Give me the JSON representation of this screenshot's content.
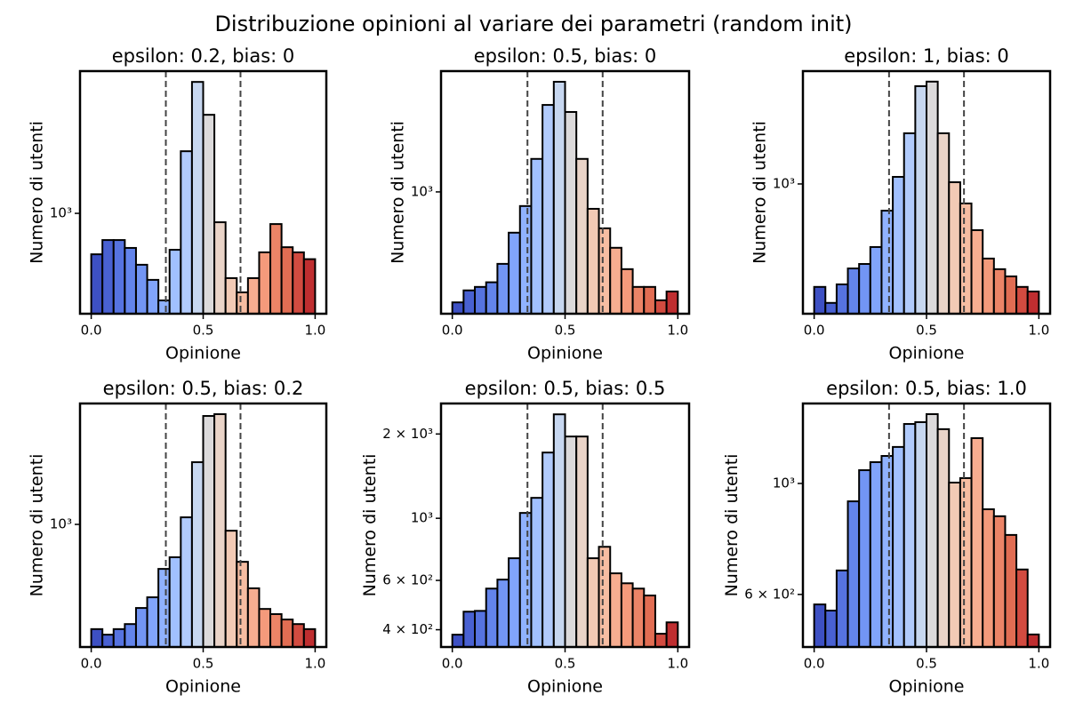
{
  "title": "Distribuzione opinioni al variare dei parametri (random init)",
  "chart_data": [
    {
      "type": "histogram",
      "title": "epsilon: 0.2, bias: 0",
      "xlabel": "Opinione",
      "ylabel": "Numero di utenti",
      "yscale": "log",
      "bins": [
        0,
        0.05,
        0.1,
        0.15,
        0.2,
        0.25,
        0.3,
        0.35,
        0.4,
        0.45,
        0.5,
        0.55,
        0.6,
        0.65,
        0.7,
        0.75,
        0.8,
        0.85,
        0.9,
        0.95,
        1
      ],
      "values": [
        671,
        771,
        771,
        714,
        606,
        523,
        428,
        701,
        1832,
        3600,
        2613,
        917,
        532,
        463,
        532,
        684,
        901,
        719,
        684,
        640
      ],
      "colors": [
        "#3d50c3",
        "#4961d2",
        "#5673e0",
        "#6384eb",
        "#7295f4",
        "#81a4fb",
        "#90b2fe",
        "#a1c0ff",
        "#b1cbfc",
        "#c7d7f0",
        "#dcdadb",
        "#ead4c8",
        "#f2cab5",
        "#f6bda2",
        "#f7ad90",
        "#f49a7b",
        "#ec8467",
        "#e16d53",
        "#d24b40",
        "#bf2e30"
      ],
      "xlim": [
        -0.05,
        1.05
      ],
      "ylim": [
        376,
        4000
      ],
      "xticks": [
        {
          "value": 0,
          "label": "0.0"
        },
        0.5,
        {
          "value": 1,
          "label": "1.0"
        }
      ],
      "yticks": [
        {
          "value": 1000,
          "label": "10³"
        }
      ],
      "vlines": [
        0.3333,
        0.6667
      ]
    },
    {
      "type": "histogram",
      "title": "epsilon: 0.5, bias: 0",
      "xlabel": "Opinione",
      "ylabel": "Numero di utenti",
      "yscale": "log",
      "bins": [
        0,
        0.05,
        0.1,
        0.15,
        0.2,
        0.25,
        0.3,
        0.35,
        0.4,
        0.45,
        0.5,
        0.55,
        0.6,
        0.65,
        0.7,
        0.75,
        0.8,
        0.85,
        0.9,
        0.95,
        1
      ],
      "values": [
        385,
        427,
        440,
        458,
        537,
        703,
        885,
        1330,
        2120,
        2590,
        1995,
        1330,
        864,
        730,
        617,
        513,
        440,
        440,
        392,
        423
      ],
      "colors": [
        "#3d50c3",
        "#4961d2",
        "#5673e0",
        "#6384eb",
        "#7295f4",
        "#81a4fb",
        "#90b2fe",
        "#a1c0ff",
        "#b1cbfc",
        "#c7d7f0",
        "#dcdadb",
        "#ead4c8",
        "#f2cab5",
        "#f6bda2",
        "#f7ad90",
        "#f49a7b",
        "#ec8467",
        "#e16d53",
        "#d24b40",
        "#bf2e30"
      ],
      "xlim": [
        -0.05,
        1.05
      ],
      "ylim": [
        349,
        2840
      ],
      "xticks": [
        {
          "value": 0,
          "label": "0.0"
        },
        0.5,
        {
          "value": 1,
          "label": "1.0"
        }
      ],
      "yticks": [
        {
          "value": 1000,
          "label": "10³"
        }
      ],
      "vlines": [
        0.3333,
        0.6667
      ]
    },
    {
      "type": "histogram",
      "title": "epsilon: 1, bias: 0",
      "xlabel": "Opinione",
      "ylabel": "Numero di utenti",
      "yscale": "log",
      "bins": [
        0,
        0.05,
        0.1,
        0.15,
        0.2,
        0.25,
        0.3,
        0.35,
        0.4,
        0.45,
        0.5,
        0.55,
        0.6,
        0.65,
        0.7,
        0.75,
        0.8,
        0.85,
        0.9,
        0.95,
        1
      ],
      "values": [
        411,
        358,
        420,
        482,
        501,
        580,
        794,
        1063,
        1549,
        2327,
        2420,
        1549,
        1015,
        845,
        671,
        525,
        479,
        450,
        411,
        395
      ],
      "colors": [
        "#3d50c3",
        "#4961d2",
        "#5673e0",
        "#6384eb",
        "#7295f4",
        "#81a4fb",
        "#90b2fe",
        "#a1c0ff",
        "#b1cbfc",
        "#c7d7f0",
        "#dcdadb",
        "#ead4c8",
        "#f2cab5",
        "#f6bda2",
        "#f7ad90",
        "#f49a7b",
        "#ec8467",
        "#e16d53",
        "#d24b40",
        "#bf2e30"
      ],
      "xlim": [
        -0.05,
        1.05
      ],
      "ylim": [
        326,
        2650
      ],
      "xticks": [
        {
          "value": 0,
          "label": "0.0"
        },
        0.5,
        {
          "value": 1,
          "label": "1.0"
        }
      ],
      "yticks": [
        {
          "value": 1000,
          "label": "10³"
        }
      ],
      "vlines": [
        0.3333,
        0.6667
      ]
    },
    {
      "type": "histogram",
      "title": "epsilon: 0.5, bias: 0.2",
      "xlabel": "Opinione",
      "ylabel": "Numero di utenti",
      "yscale": "log",
      "bins": [
        0,
        0.05,
        0.1,
        0.15,
        0.2,
        0.25,
        0.3,
        0.35,
        0.4,
        0.45,
        0.5,
        0.55,
        0.6,
        0.65,
        0.7,
        0.75,
        0.8,
        0.85,
        0.9,
        0.95,
        1
      ],
      "values": [
        405,
        386,
        405,
        423,
        486,
        533,
        681,
        753,
        1063,
        1711,
        2550,
        2590,
        947,
        724,
        576,
        482,
        461,
        440,
        423,
        405
      ],
      "colors": [
        "#3d50c3",
        "#4961d2",
        "#5673e0",
        "#6384eb",
        "#7295f4",
        "#81a4fb",
        "#90b2fe",
        "#a1c0ff",
        "#b1cbfc",
        "#c7d7f0",
        "#dcdadb",
        "#ead4c8",
        "#f2cab5",
        "#f6bda2",
        "#f7ad90",
        "#f49a7b",
        "#ec8467",
        "#e16d53",
        "#d24b40",
        "#bf2e30"
      ],
      "xlim": [
        -0.05,
        1.05
      ],
      "ylim": [
        347,
        2840
      ],
      "xticks": [
        {
          "value": 0,
          "label": "0.0"
        },
        0.5,
        {
          "value": 1,
          "label": "1.0"
        }
      ],
      "yticks": [
        {
          "value": 1000,
          "label": "10³"
        }
      ],
      "vlines": [
        0.3333,
        0.6667
      ]
    },
    {
      "type": "histogram",
      "title": "epsilon: 0.5, bias: 0.5",
      "xlabel": "Opinione",
      "ylabel": "Numero di utenti",
      "yscale": "log",
      "bins": [
        0,
        0.05,
        0.1,
        0.15,
        0.2,
        0.25,
        0.3,
        0.35,
        0.4,
        0.45,
        0.5,
        0.55,
        0.6,
        0.65,
        0.7,
        0.75,
        0.8,
        0.85,
        0.9,
        0.95,
        1
      ],
      "values": [
        384,
        464,
        467,
        561,
        604,
        720,
        1045,
        1183,
        1717,
        2351,
        1959,
        1959,
        720,
        791,
        636,
        586,
        561,
        530,
        387,
        425
      ],
      "colors": [
        "#3d50c3",
        "#4961d2",
        "#5673e0",
        "#6384eb",
        "#7295f4",
        "#81a4fb",
        "#90b2fe",
        "#a1c0ff",
        "#b1cbfc",
        "#c7d7f0",
        "#dcdadb",
        "#ead4c8",
        "#f2cab5",
        "#f6bda2",
        "#f7ad90",
        "#f49a7b",
        "#ec8467",
        "#e16d53",
        "#d24b40",
        "#bf2e30"
      ],
      "xlim": [
        -0.05,
        1.05
      ],
      "ylim": [
        347,
        2570
      ],
      "xticks": [
        {
          "value": 0,
          "label": "0.0"
        },
        0.5,
        {
          "value": 1,
          "label": "1.0"
        }
      ],
      "yticks": [
        {
          "value": 400,
          "label": "4 × 10²"
        },
        {
          "value": 600,
          "label": "6 × 10²"
        },
        {
          "value": 1000,
          "label": "10³"
        },
        {
          "value": 2000,
          "label": "2 × 10³"
        }
      ],
      "vlines": [
        0.3333,
        0.6667
      ]
    },
    {
      "type": "histogram",
      "title": "epsilon: 0.5, bias: 1.0",
      "xlabel": "Opinione",
      "ylabel": "Numero di utenti",
      "yscale": "log",
      "bins": [
        0,
        0.05,
        0.1,
        0.15,
        0.2,
        0.25,
        0.3,
        0.35,
        0.4,
        0.45,
        0.5,
        0.55,
        0.6,
        0.65,
        0.7,
        0.75,
        0.8,
        0.85,
        0.9,
        0.95,
        1
      ],
      "values": [
        573,
        557,
        670,
        921,
        1063,
        1103,
        1135,
        1183,
        1315,
        1326,
        1376,
        1284,
        1004,
        1025,
        1232,
        888,
        860,
        789,
        673,
        499
      ],
      "colors": [
        "#3d50c3",
        "#4961d2",
        "#5673e0",
        "#6384eb",
        "#7295f4",
        "#81a4fb",
        "#90b2fe",
        "#a1c0ff",
        "#b1cbfc",
        "#c7d7f0",
        "#dcdadb",
        "#ead4c8",
        "#f2cab5",
        "#f6bda2",
        "#f7ad90",
        "#f49a7b",
        "#ec8467",
        "#e16d53",
        "#d24b40",
        "#bf2e30"
      ],
      "xlim": [
        -0.05,
        1.05
      ],
      "ylim": [
        471,
        1445
      ],
      "xticks": [
        {
          "value": 0,
          "label": "0.0"
        },
        0.5,
        {
          "value": 1,
          "label": "1.0"
        }
      ],
      "yticks": [
        {
          "value": 600,
          "label": "6 × 10²"
        },
        {
          "value": 1000,
          "label": "10³"
        }
      ],
      "vlines": [
        0.3333,
        0.6667
      ]
    }
  ]
}
